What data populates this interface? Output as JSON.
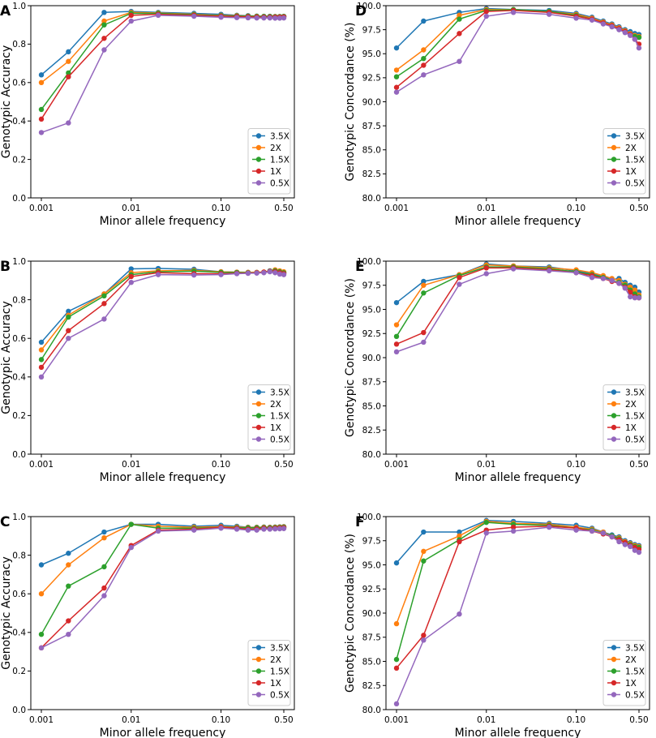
{
  "figure": {
    "x_tick_labels": [
      "0.001",
      "0.01",
      "0.10",
      "0.50"
    ],
    "x_tick_values": [
      0.001,
      0.01,
      0.1,
      0.5
    ]
  },
  "series_colors": {
    "3.5X": "#1f77b4",
    "2X": "#ff7f0e",
    "1.5X": "#2ca02c",
    "1X": "#d62728",
    "0.5X": "#9467bd"
  },
  "chart_data": [
    {
      "panel": "A",
      "type": "line",
      "xlabel": "Minor allele frequency",
      "ylabel": "Genotypic Accuracy",
      "xscale": "log",
      "xlim": [
        0.001,
        0.5
      ],
      "ylim": [
        0.0,
        1.0
      ],
      "yticks": [
        0.0,
        0.2,
        0.4,
        0.6,
        0.8,
        1.0
      ],
      "ytick_labels": [
        "0.0",
        "0.2",
        "0.4",
        "0.6",
        "0.8",
        "1.0"
      ],
      "legend_position": "bottom-right",
      "x": [
        0.001,
        0.002,
        0.005,
        0.01,
        0.02,
        0.05,
        0.1,
        0.15,
        0.2,
        0.25,
        0.3,
        0.35,
        0.4,
        0.45,
        0.5
      ],
      "series": [
        {
          "name": "3.5X",
          "values": [
            0.64,
            0.76,
            0.965,
            0.97,
            0.965,
            0.96,
            0.955,
            0.95,
            0.948,
            0.946,
            0.945,
            0.945,
            0.944,
            0.944,
            0.945
          ]
        },
        {
          "name": "2X",
          "values": [
            0.6,
            0.71,
            0.92,
            0.965,
            0.962,
            0.955,
            0.95,
            0.948,
            0.946,
            0.945,
            0.944,
            0.944,
            0.943,
            0.943,
            0.944
          ]
        },
        {
          "name": "1.5X",
          "values": [
            0.46,
            0.65,
            0.9,
            0.96,
            0.96,
            0.953,
            0.948,
            0.946,
            0.945,
            0.944,
            0.943,
            0.943,
            0.942,
            0.942,
            0.943
          ]
        },
        {
          "name": "1X",
          "values": [
            0.41,
            0.63,
            0.83,
            0.95,
            0.955,
            0.95,
            0.945,
            0.943,
            0.942,
            0.941,
            0.94,
            0.94,
            0.94,
            0.94,
            0.941
          ]
        },
        {
          "name": "0.5X",
          "values": [
            0.34,
            0.39,
            0.77,
            0.92,
            0.95,
            0.945,
            0.94,
            0.938,
            0.937,
            0.936,
            0.936,
            0.936,
            0.935,
            0.935,
            0.936
          ]
        }
      ]
    },
    {
      "panel": "B",
      "type": "line",
      "xlabel": "Minor allele frequency",
      "ylabel": "Genotypic Accuracy",
      "xscale": "log",
      "xlim": [
        0.001,
        0.5
      ],
      "ylim": [
        0.0,
        1.0
      ],
      "yticks": [
        0.0,
        0.2,
        0.4,
        0.6,
        0.8,
        1.0
      ],
      "ytick_labels": [
        "0.0",
        "0.2",
        "0.4",
        "0.6",
        "0.8",
        "1.0"
      ],
      "legend_position": "bottom-right",
      "x": [
        0.001,
        0.002,
        0.005,
        0.01,
        0.02,
        0.05,
        0.1,
        0.15,
        0.2,
        0.25,
        0.3,
        0.35,
        0.4,
        0.45,
        0.5
      ],
      "series": [
        {
          "name": "3.5X",
          "values": [
            0.58,
            0.74,
            0.83,
            0.96,
            0.962,
            0.958,
            0.945,
            0.943,
            0.942,
            0.942,
            0.943,
            0.95,
            0.952,
            0.945,
            0.94
          ]
        },
        {
          "name": "2X",
          "values": [
            0.54,
            0.72,
            0.83,
            0.94,
            0.95,
            0.952,
            0.945,
            0.943,
            0.942,
            0.942,
            0.944,
            0.948,
            0.955,
            0.95,
            0.945
          ]
        },
        {
          "name": "1.5X",
          "values": [
            0.49,
            0.71,
            0.82,
            0.93,
            0.945,
            0.948,
            0.942,
            0.941,
            0.94,
            0.94,
            0.942,
            0.948,
            0.95,
            0.945,
            0.94
          ]
        },
        {
          "name": "1X",
          "values": [
            0.45,
            0.64,
            0.78,
            0.92,
            0.94,
            0.935,
            0.935,
            0.937,
            0.938,
            0.94,
            0.943,
            0.947,
            0.945,
            0.94,
            0.935
          ]
        },
        {
          "name": "0.5X",
          "values": [
            0.4,
            0.6,
            0.7,
            0.89,
            0.93,
            0.928,
            0.93,
            0.935,
            0.937,
            0.938,
            0.94,
            0.945,
            0.94,
            0.933,
            0.93
          ]
        }
      ]
    },
    {
      "panel": "C",
      "type": "line",
      "xlabel": "Minor allele frequency",
      "ylabel": "Genotypic Accuracy",
      "xscale": "log",
      "xlim": [
        0.001,
        0.5
      ],
      "ylim": [
        0.0,
        1.0
      ],
      "yticks": [
        0.0,
        0.2,
        0.4,
        0.6,
        0.8,
        1.0
      ],
      "ytick_labels": [
        "0.0",
        "0.2",
        "0.4",
        "0.6",
        "0.8",
        "1.0"
      ],
      "legend_position": "bottom-right",
      "x": [
        0.001,
        0.002,
        0.005,
        0.01,
        0.02,
        0.05,
        0.1,
        0.15,
        0.2,
        0.25,
        0.3,
        0.35,
        0.4,
        0.45,
        0.5
      ],
      "series": [
        {
          "name": "3.5X",
          "values": [
            0.75,
            0.81,
            0.92,
            0.96,
            0.96,
            0.95,
            0.955,
            0.95,
            0.945,
            0.945,
            0.946,
            0.945,
            0.946,
            0.947,
            0.948
          ]
        },
        {
          "name": "2X",
          "values": [
            0.6,
            0.75,
            0.89,
            0.96,
            0.95,
            0.945,
            0.948,
            0.946,
            0.944,
            0.944,
            0.945,
            0.944,
            0.945,
            0.946,
            0.947
          ]
        },
        {
          "name": "1.5X",
          "values": [
            0.39,
            0.64,
            0.74,
            0.96,
            0.94,
            0.94,
            0.945,
            0.943,
            0.942,
            0.942,
            0.943,
            0.942,
            0.943,
            0.944,
            0.945
          ]
        },
        {
          "name": "1X",
          "values": [
            0.32,
            0.46,
            0.63,
            0.85,
            0.93,
            0.935,
            0.945,
            0.94,
            0.935,
            0.936,
            0.94,
            0.938,
            0.94,
            0.941,
            0.942
          ]
        },
        {
          "name": "0.5X",
          "values": [
            0.32,
            0.39,
            0.59,
            0.84,
            0.925,
            0.93,
            0.94,
            0.935,
            0.93,
            0.93,
            0.935,
            0.935,
            0.936,
            0.937,
            0.938
          ]
        }
      ]
    },
    {
      "panel": "D",
      "type": "line",
      "xlabel": "Minor allele frequency",
      "ylabel": "Genotypic Concordance (%)",
      "xscale": "log",
      "xlim": [
        0.001,
        0.5
      ],
      "ylim": [
        80.0,
        100.0
      ],
      "yticks": [
        80.0,
        82.5,
        85.0,
        87.5,
        90.0,
        92.5,
        95.0,
        97.5,
        100.0
      ],
      "ytick_labels": [
        "80.0",
        "82.5",
        "85.0",
        "87.5",
        "90.0",
        "92.5",
        "95.0",
        "97.5",
        "100.0"
      ],
      "legend_position": "bottom-right",
      "x": [
        0.001,
        0.002,
        0.005,
        0.01,
        0.02,
        0.05,
        0.1,
        0.15,
        0.2,
        0.25,
        0.3,
        0.35,
        0.4,
        0.45,
        0.5
      ],
      "series": [
        {
          "name": "3.5X",
          "values": [
            95.6,
            98.4,
            99.3,
            99.7,
            99.6,
            99.5,
            99.2,
            98.8,
            98.4,
            98.1,
            97.8,
            97.5,
            97.3,
            97.1,
            97.0
          ]
        },
        {
          "name": "2X",
          "values": [
            93.3,
            95.4,
            99.0,
            99.6,
            99.6,
            99.4,
            99.1,
            98.7,
            98.3,
            98.0,
            97.7,
            97.4,
            97.1,
            96.9,
            96.8
          ]
        },
        {
          "name": "1.5X",
          "values": [
            92.6,
            94.5,
            98.6,
            99.5,
            99.6,
            99.4,
            99.0,
            98.6,
            98.2,
            97.9,
            97.6,
            97.3,
            97.0,
            96.8,
            96.7
          ]
        },
        {
          "name": "1X",
          "values": [
            91.5,
            93.8,
            97.1,
            99.4,
            99.5,
            99.3,
            98.9,
            98.6,
            98.2,
            97.9,
            97.6,
            97.3,
            97.0,
            96.5,
            96.0
          ]
        },
        {
          "name": "0.5X",
          "values": [
            91.0,
            92.8,
            94.2,
            98.9,
            99.3,
            99.1,
            98.7,
            98.5,
            98.1,
            97.8,
            97.5,
            97.2,
            96.9,
            96.5,
            95.6
          ]
        }
      ]
    },
    {
      "panel": "E",
      "type": "line",
      "xlabel": "Minor allele frequency",
      "ylabel": "Genotypic Concordance (%)",
      "xscale": "log",
      "xlim": [
        0.001,
        0.5
      ],
      "ylim": [
        80.0,
        100.0
      ],
      "yticks": [
        80.0,
        82.5,
        85.0,
        87.5,
        90.0,
        92.5,
        95.0,
        97.5,
        100.0
      ],
      "ytick_labels": [
        "80.0",
        "82.5",
        "85.0",
        "87.5",
        "90.0",
        "92.5",
        "95.0",
        "97.5",
        "100.0"
      ],
      "legend_position": "bottom-right",
      "x": [
        0.001,
        0.002,
        0.005,
        0.01,
        0.02,
        0.05,
        0.1,
        0.15,
        0.2,
        0.25,
        0.3,
        0.35,
        0.4,
        0.45,
        0.5
      ],
      "series": [
        {
          "name": "3.5X",
          "values": [
            95.7,
            97.9,
            98.6,
            99.7,
            99.5,
            99.4,
            99.0,
            98.7,
            98.4,
            98.1,
            98.2,
            97.8,
            97.5,
            97.3,
            96.8
          ]
        },
        {
          "name": "2X",
          "values": [
            93.4,
            97.5,
            98.6,
            99.6,
            99.5,
            99.3,
            99.1,
            98.8,
            98.5,
            98.2,
            98.0,
            97.6,
            97.3,
            97.0,
            96.5
          ]
        },
        {
          "name": "1.5X",
          "values": [
            92.2,
            96.7,
            98.5,
            99.4,
            99.4,
            99.2,
            98.9,
            98.6,
            98.3,
            98.0,
            97.8,
            97.5,
            97.0,
            96.6,
            96.3
          ]
        },
        {
          "name": "1X",
          "values": [
            91.4,
            92.6,
            98.3,
            99.3,
            99.3,
            99.1,
            98.8,
            98.5,
            98.2,
            97.9,
            97.7,
            97.3,
            96.8,
            96.3,
            96.2
          ]
        },
        {
          "name": "0.5X",
          "values": [
            90.6,
            91.6,
            97.6,
            98.7,
            99.2,
            99.0,
            98.8,
            98.3,
            98.2,
            98.0,
            97.7,
            97.2,
            96.3,
            96.2,
            96.2
          ]
        }
      ]
    },
    {
      "panel": "F",
      "type": "line",
      "xlabel": "Minor allele frequency",
      "ylabel": "Genotypic Concordance (%)",
      "xscale": "log",
      "xlim": [
        0.001,
        0.5
      ],
      "ylim": [
        80.0,
        100.0
      ],
      "yticks": [
        80.0,
        82.5,
        85.0,
        87.5,
        90.0,
        92.5,
        95.0,
        97.5,
        100.0
      ],
      "ytick_labels": [
        "80.0",
        "82.5",
        "85.0",
        "87.5",
        "90.0",
        "92.5",
        "95.0",
        "97.5",
        "100.0"
      ],
      "legend_position": "bottom-right",
      "x": [
        0.001,
        0.002,
        0.005,
        0.01,
        0.02,
        0.05,
        0.1,
        0.15,
        0.2,
        0.25,
        0.3,
        0.35,
        0.4,
        0.45,
        0.5
      ],
      "series": [
        {
          "name": "3.5X",
          "values": [
            95.2,
            98.4,
            98.4,
            99.6,
            99.5,
            99.3,
            99.1,
            98.8,
            98.4,
            98.1,
            97.9,
            97.5,
            97.3,
            97.1,
            97.0
          ]
        },
        {
          "name": "2X",
          "values": [
            88.9,
            96.4,
            98.0,
            99.5,
            99.3,
            99.2,
            98.9,
            98.7,
            98.4,
            98.0,
            97.8,
            97.4,
            97.2,
            97.0,
            96.9
          ]
        },
        {
          "name": "1.5X",
          "values": [
            85.2,
            95.4,
            97.6,
            99.4,
            99.2,
            99.1,
            98.8,
            98.6,
            98.3,
            98.0,
            97.7,
            97.3,
            97.1,
            96.9,
            96.8
          ]
        },
        {
          "name": "1X",
          "values": [
            84.3,
            87.7,
            97.4,
            98.6,
            98.9,
            99.0,
            98.8,
            98.5,
            98.2,
            97.9,
            97.6,
            97.3,
            97.0,
            96.8,
            96.6
          ]
        },
        {
          "name": "0.5X",
          "values": [
            80.6,
            87.2,
            89.9,
            98.3,
            98.5,
            98.9,
            98.6,
            98.5,
            98.3,
            97.9,
            97.4,
            97.1,
            96.9,
            96.5,
            96.3
          ]
        }
      ]
    }
  ]
}
